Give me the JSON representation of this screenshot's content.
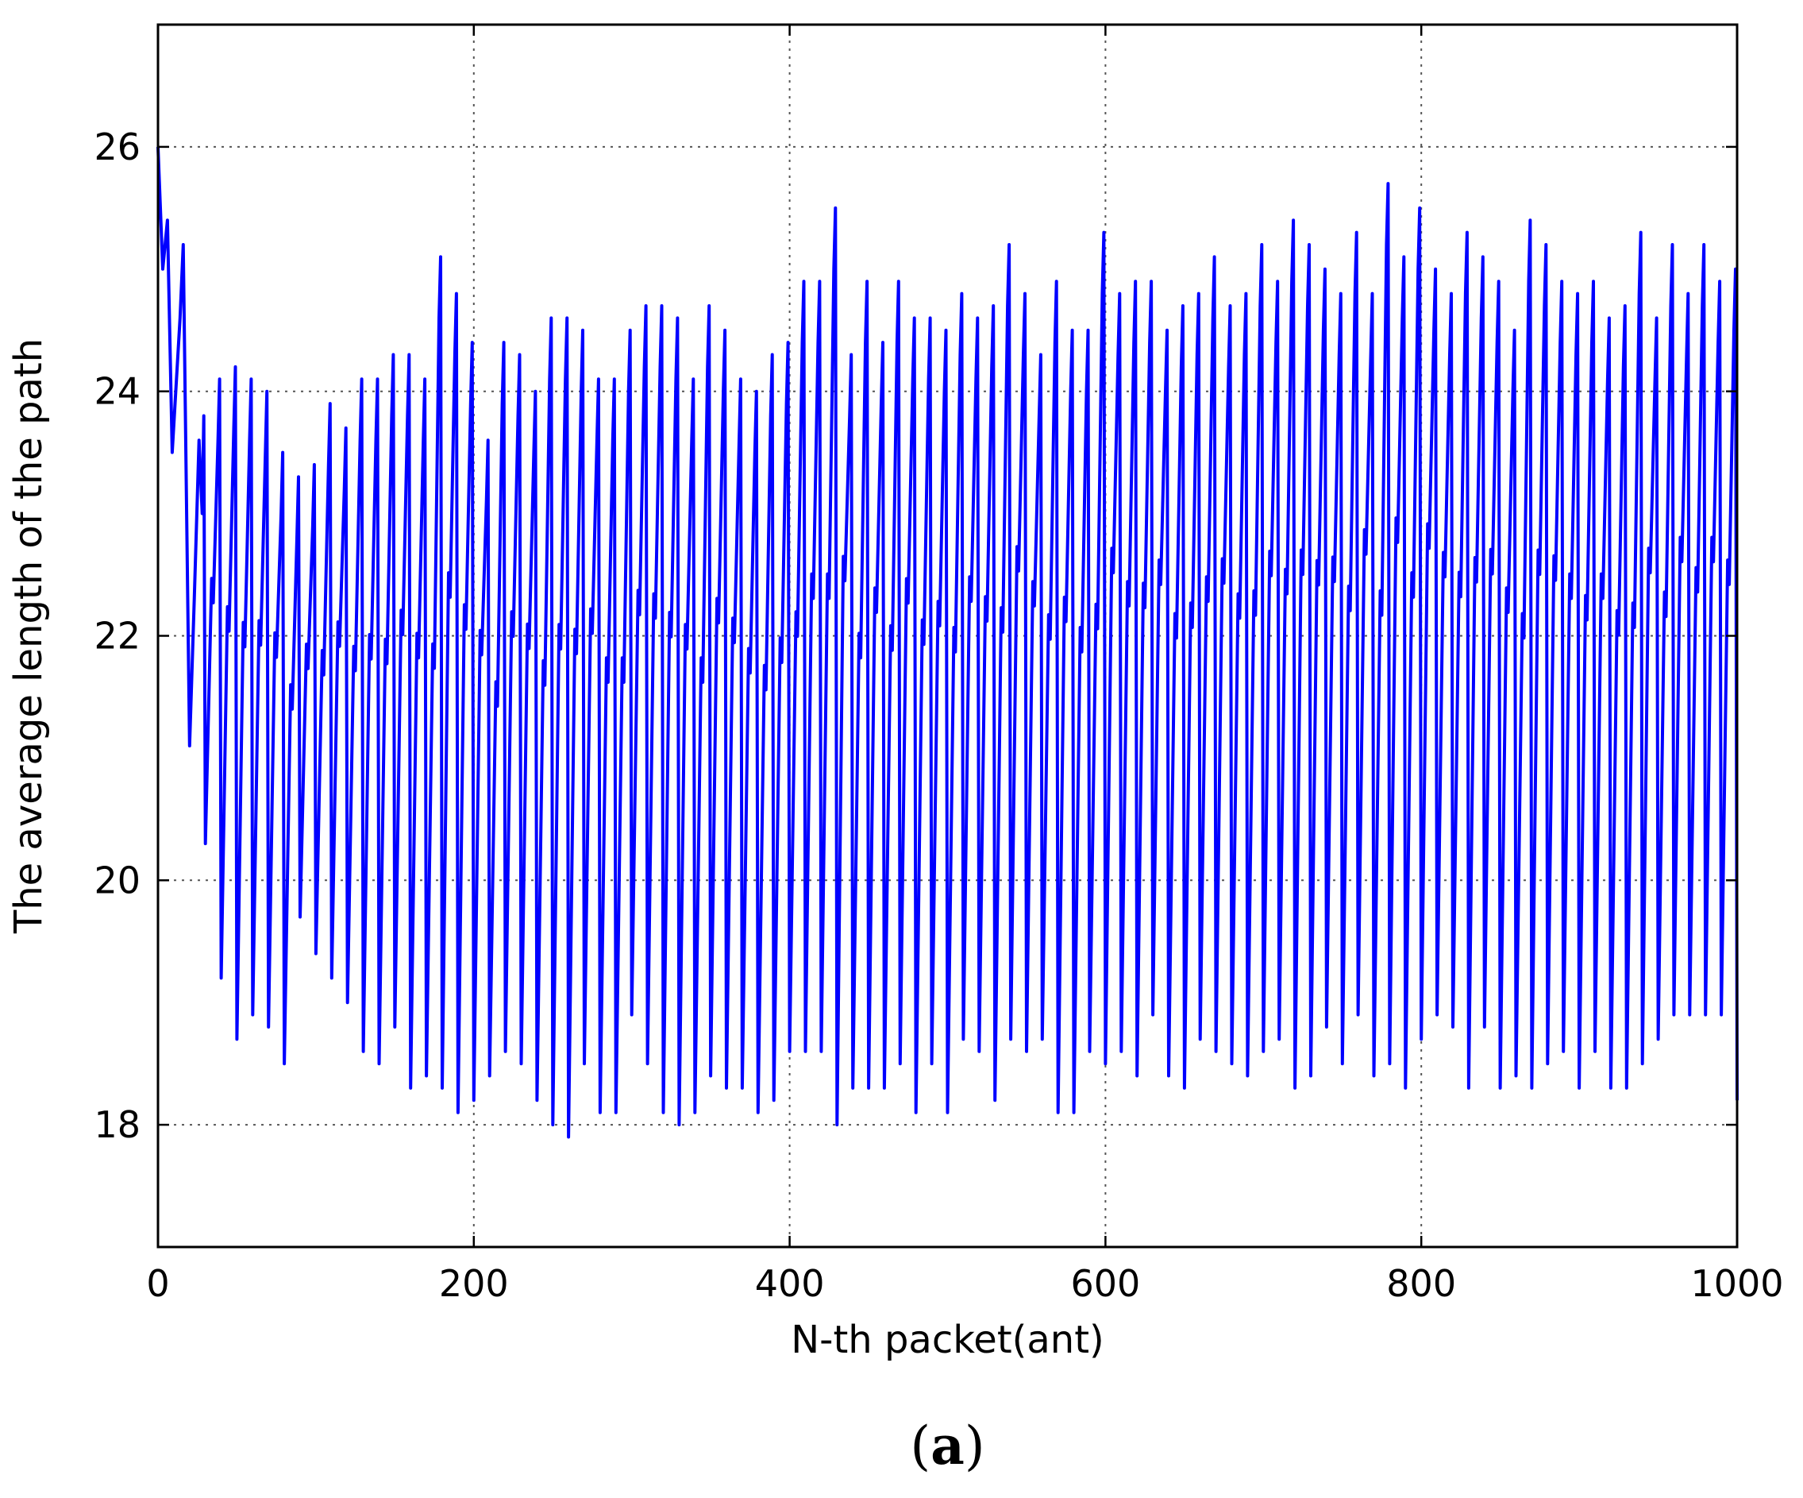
{
  "chart_data": {
    "type": "line",
    "title": "",
    "xlabel": "N-th packet(ant)",
    "ylabel": "The average length of the path",
    "xlim": [
      0,
      1000
    ],
    "ylim": [
      17,
      27
    ],
    "xticks": [
      0,
      200,
      400,
      600,
      800,
      1000
    ],
    "xtick_labels": [
      "0",
      "200",
      "400",
      "600",
      "800",
      "1000"
    ],
    "yticks": [
      18,
      20,
      22,
      24,
      26
    ],
    "ytick_labels": [
      "18",
      "20",
      "22",
      "24",
      "26"
    ],
    "grid": true,
    "legend": "none",
    "series": [
      {
        "color": "#0000ff",
        "period": 10,
        "initial": [
          [
            0,
            26.0
          ],
          [
            3,
            25.0
          ],
          [
            6,
            25.4
          ],
          [
            9,
            23.5
          ],
          [
            14,
            24.6
          ],
          [
            16,
            25.2
          ],
          [
            20,
            21.1
          ],
          [
            23,
            22.3
          ],
          [
            26,
            23.6
          ],
          [
            28,
            23.0
          ]
        ],
        "peaks": [
          23.8,
          24.1,
          24.2,
          24.1,
          24.0,
          23.5,
          23.3,
          23.4,
          23.9,
          23.7,
          24.1,
          24.1,
          24.3,
          24.3,
          24.1,
          25.1,
          24.8,
          24.4,
          23.6,
          24.4,
          24.3,
          24.0,
          24.6,
          24.6,
          24.5,
          24.1,
          24.1,
          24.5,
          24.7,
          24.7,
          24.6,
          24.1,
          24.7,
          24.5,
          24.1,
          24.0,
          24.3,
          24.4,
          24.9,
          24.9,
          25.5,
          24.3,
          24.9,
          24.4,
          24.9,
          24.6,
          24.6,
          24.5,
          24.8,
          24.6,
          24.7,
          25.2,
          24.8,
          24.3,
          24.9,
          24.5,
          24.5,
          25.3,
          24.8,
          24.9,
          24.9,
          24.5,
          24.7,
          24.8,
          25.1,
          24.7,
          24.8,
          25.2,
          24.9,
          25.4,
          25.2,
          25.0,
          24.8,
          25.3,
          24.8,
          25.7,
          25.1,
          25.5,
          25.0,
          24.8,
          25.3,
          25.1,
          24.9,
          24.5,
          25.4,
          25.2,
          24.9,
          24.8,
          24.9,
          24.6,
          24.7,
          25.3,
          24.6,
          25.2,
          24.8,
          25.2,
          24.9,
          25.0
        ],
        "troughs": [
          20.3,
          19.2,
          18.7,
          18.9,
          18.8,
          18.5,
          19.7,
          19.4,
          19.2,
          19.0,
          18.6,
          18.5,
          18.8,
          18.3,
          18.4,
          18.3,
          18.1,
          18.2,
          18.4,
          18.6,
          18.5,
          18.2,
          18.0,
          17.9,
          18.5,
          18.1,
          18.1,
          18.9,
          18.5,
          18.1,
          18.0,
          18.1,
          18.4,
          18.3,
          18.3,
          18.1,
          18.2,
          18.6,
          18.6,
          18.6,
          18.0,
          18.3,
          18.3,
          18.3,
          18.5,
          18.1,
          18.5,
          18.1,
          18.7,
          18.6,
          18.2,
          18.7,
          18.6,
          18.7,
          18.1,
          18.1,
          18.6,
          18.5,
          18.6,
          18.4,
          18.9,
          18.4,
          18.3,
          18.7,
          18.6,
          18.5,
          18.4,
          18.6,
          18.7,
          18.3,
          18.4,
          18.8,
          18.5,
          18.9,
          18.4,
          18.5,
          18.3,
          18.7,
          18.9,
          18.8,
          18.3,
          18.8,
          18.3,
          18.4,
          18.3,
          18.5,
          18.6,
          18.3,
          18.6,
          18.3,
          18.3,
          18.5,
          18.7,
          18.9,
          18.9,
          18.9,
          18.9,
          18.2,
          18.2
        ]
      }
    ]
  },
  "caption": {
    "open": "(",
    "letter": "a",
    "close": ")"
  }
}
